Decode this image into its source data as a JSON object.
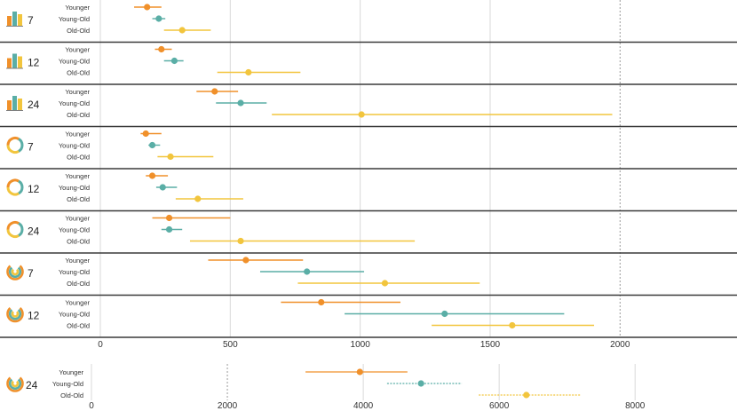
{
  "colors": {
    "younger": "#f0902a",
    "young_old": "#5aaea6",
    "old_old": "#f2c53d",
    "divider": "#3a3a3a",
    "grid": "#d9d9d9",
    "ref": "#9a9a9a"
  },
  "chart_data": [
    {
      "type": "dot-range",
      "panel": "main",
      "xlim": [
        0,
        2450
      ],
      "xticks": [
        0,
        500,
        1000,
        1500,
        2000
      ],
      "xtick_labels": [
        "0",
        "500",
        "1000",
        "1500",
        "2000"
      ],
      "reference_line": 2000,
      "groups": [
        "Younger",
        "Young-Old",
        "Old-Old"
      ],
      "rows": [
        {
          "icon": "bars-icon",
          "label": "7",
          "values": [
            {
              "group": "Younger",
              "point": 180,
              "low": 130,
              "high": 235
            },
            {
              "group": "Young-Old",
              "point": 225,
              "low": 200,
              "high": 250
            },
            {
              "group": "Old-Old",
              "point": 315,
              "low": 245,
              "high": 425
            }
          ]
        },
        {
          "icon": "bars-icon",
          "label": "12",
          "values": [
            {
              "group": "Younger",
              "point": 235,
              "low": 210,
              "high": 275
            },
            {
              "group": "Young-Old",
              "point": 285,
              "low": 245,
              "high": 320
            },
            {
              "group": "Old-Old",
              "point": 570,
              "low": 450,
              "high": 770
            }
          ]
        },
        {
          "icon": "bars-icon",
          "label": "24",
          "values": [
            {
              "group": "Younger",
              "point": 440,
              "low": 370,
              "high": 530
            },
            {
              "group": "Young-Old",
              "point": 540,
              "low": 445,
              "high": 640
            },
            {
              "group": "Old-Old",
              "point": 1005,
              "low": 660,
              "high": 1970
            }
          ]
        },
        {
          "icon": "ring-icon",
          "label": "7",
          "values": [
            {
              "group": "Younger",
              "point": 175,
              "low": 155,
              "high": 235
            },
            {
              "group": "Young-Old",
              "point": 200,
              "low": 185,
              "high": 230
            },
            {
              "group": "Old-Old",
              "point": 270,
              "low": 220,
              "high": 435
            }
          ]
        },
        {
          "icon": "ring-icon",
          "label": "12",
          "values": [
            {
              "group": "Younger",
              "point": 200,
              "low": 175,
              "high": 260
            },
            {
              "group": "Young-Old",
              "point": 240,
              "low": 215,
              "high": 295
            },
            {
              "group": "Old-Old",
              "point": 375,
              "low": 290,
              "high": 550
            }
          ]
        },
        {
          "icon": "ring-icon",
          "label": "24",
          "values": [
            {
              "group": "Younger",
              "point": 265,
              "low": 200,
              "high": 500
            },
            {
              "group": "Young-Old",
              "point": 265,
              "low": 235,
              "high": 315
            },
            {
              "group": "Old-Old",
              "point": 540,
              "low": 345,
              "high": 1210
            }
          ]
        },
        {
          "icon": "arc-icon",
          "label": "7",
          "values": [
            {
              "group": "Younger",
              "point": 560,
              "low": 415,
              "high": 780
            },
            {
              "group": "Young-Old",
              "point": 795,
              "low": 615,
              "high": 1015
            },
            {
              "group": "Old-Old",
              "point": 1095,
              "low": 760,
              "high": 1460
            }
          ]
        },
        {
          "icon": "arc-icon",
          "label": "12",
          "values": [
            {
              "group": "Younger",
              "point": 850,
              "low": 695,
              "high": 1155
            },
            {
              "group": "Young-Old",
              "point": 1325,
              "low": 940,
              "high": 1785
            },
            {
              "group": "Old-Old",
              "point": 1585,
              "low": 1275,
              "high": 1900
            }
          ]
        }
      ]
    },
    {
      "type": "dot-range",
      "panel": "secondary",
      "xlim": [
        0,
        9500
      ],
      "xticks": [
        0,
        2000,
        4000,
        6000,
        8000
      ],
      "xtick_labels": [
        "0",
        "2000",
        "4000",
        "6000",
        "8000"
      ],
      "reference_line": 2000,
      "groups": [
        "Younger",
        "Young-Old",
        "Old-Old"
      ],
      "rows": [
        {
          "icon": "arc-icon",
          "label": "24",
          "values": [
            {
              "group": "Younger",
              "point": 3950,
              "low": 3150,
              "high": 4650
            },
            {
              "group": "Young-Old",
              "point": 4850,
              "low": 4350,
              "high": 5450
            },
            {
              "group": "Old-Old",
              "point": 6400,
              "low": 5700,
              "high": 7200
            }
          ]
        }
      ]
    }
  ]
}
